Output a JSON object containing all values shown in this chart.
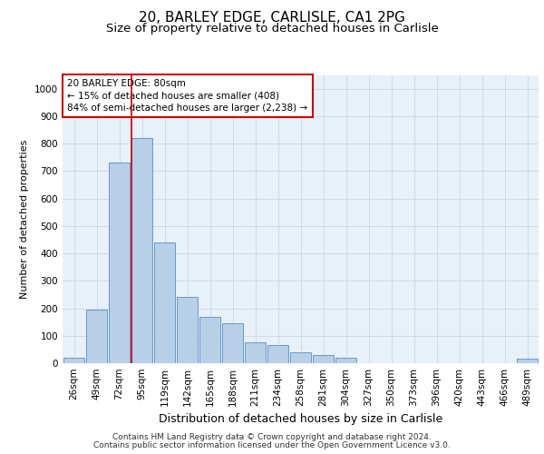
{
  "title1": "20, BARLEY EDGE, CARLISLE, CA1 2PG",
  "title2": "Size of property relative to detached houses in Carlisle",
  "xlabel": "Distribution of detached houses by size in Carlisle",
  "ylabel": "Number of detached properties",
  "categories": [
    "26sqm",
    "49sqm",
    "72sqm",
    "95sqm",
    "119sqm",
    "142sqm",
    "165sqm",
    "188sqm",
    "211sqm",
    "234sqm",
    "258sqm",
    "281sqm",
    "304sqm",
    "327sqm",
    "350sqm",
    "373sqm",
    "396sqm",
    "420sqm",
    "443sqm",
    "466sqm",
    "489sqm"
  ],
  "values": [
    20,
    195,
    730,
    820,
    440,
    240,
    170,
    145,
    75,
    65,
    40,
    30,
    20,
    0,
    0,
    0,
    0,
    0,
    0,
    0,
    15
  ],
  "bar_color": "#b8cfe8",
  "bar_edge_color": "#6699cc",
  "red_line_x": 2.55,
  "annotation_title": "20 BARLEY EDGE: 80sqm",
  "annotation_line1": "← 15% of detached houses are smaller (408)",
  "annotation_line2": "84% of semi-detached houses are larger (2,238) →",
  "annotation_box_color": "#ffffff",
  "annotation_box_edge": "#cc0000",
  "red_line_color": "#cc0000",
  "grid_color": "#c8d8e8",
  "background_color": "#e8f0f8",
  "footer1": "Contains HM Land Registry data © Crown copyright and database right 2024.",
  "footer2": "Contains public sector information licensed under the Open Government Licence v3.0.",
  "ylim": [
    0,
    1050
  ],
  "yticks": [
    0,
    100,
    200,
    300,
    400,
    500,
    600,
    700,
    800,
    900,
    1000
  ],
  "title1_fontsize": 11,
  "title2_fontsize": 9.5,
  "xlabel_fontsize": 9,
  "ylabel_fontsize": 8,
  "tick_fontsize": 7.5,
  "annotation_fontsize": 7.5,
  "footer_fontsize": 6.5
}
